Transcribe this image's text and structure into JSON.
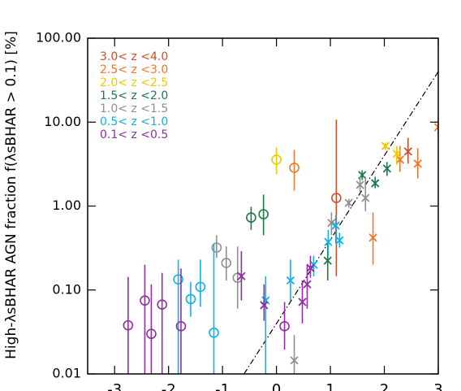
{
  "chart_data": {
    "type": "scatter",
    "y_label": "High-λsBHAR AGN fraction  f(λsBHAR > 0.1)  [%]",
    "log_y": true,
    "xlim": [
      -3.5,
      3
    ],
    "ylim": [
      0.01,
      100
    ],
    "xticks": [
      -3,
      -2,
      -1,
      0,
      1,
      2,
      3
    ],
    "yticks": [
      {
        "value": 100,
        "label": "100.00"
      },
      {
        "value": 10,
        "label": "10.00"
      },
      {
        "value": 1,
        "label": "1.00"
      },
      {
        "value": 0.1,
        "label": "0.10"
      },
      {
        "value": 0.01,
        "label": "0.01"
      }
    ],
    "fit_line": {
      "x": [
        -0.6,
        3
      ],
      "y": [
        0.01,
        40
      ],
      "color": "#000000"
    },
    "series": [
      {
        "name": "3.0< z <4.0",
        "color": "#c8502a",
        "x": [
          1.11,
          2.44
        ],
        "y": [
          1.25,
          4.47
        ],
        "ylow": [
          0.146,
          3.2
        ],
        "yhigh": [
          10.7,
          6.5
        ],
        "markers": [
          "o",
          "x"
        ]
      },
      {
        "name": "2.5< z <3.0",
        "color": "#f07828",
        "x": [
          0.33,
          1.79,
          2.29,
          2.62,
          3
        ],
        "y": [
          2.86,
          0.42,
          3.57,
          3.2,
          8.7
        ],
        "ylow": [
          1.53,
          0.2,
          2.56,
          2.14,
          6.5
        ],
        "yhigh": [
          4.67,
          0.84,
          5.2,
          4.9,
          11.4
        ],
        "markers": [
          "o",
          "x",
          "x",
          "x",
          "x"
        ]
      },
      {
        "name": "2.0< z <2.5",
        "color": "#f0c800",
        "x": [
          0,
          2.02,
          2.23
        ],
        "y": [
          3.57,
          5.2,
          4.2
        ],
        "ylow": [
          2.39,
          4.67,
          3.1
        ],
        "yhigh": [
          5.0,
          5.7,
          5.2
        ],
        "markers": [
          "o",
          "x",
          "x"
        ]
      },
      {
        "name": "1.5< z <2.0",
        "color": "#207848",
        "x": [
          -0.47,
          -0.24,
          0.95,
          1.59,
          1.83,
          2.05
        ],
        "y": [
          0.73,
          0.8,
          0.224,
          2.34,
          1.87,
          2.8
        ],
        "ylow": [
          0.52,
          0.45,
          0.13,
          2.04,
          1.63,
          2.29
        ],
        "yhigh": [
          0.98,
          1.37,
          0.37,
          2.67,
          2.24,
          3.34
        ],
        "markers": [
          "o",
          "o",
          "x",
          "x",
          "x",
          "x"
        ]
      },
      {
        "name": "1.0< z <1.5",
        "color": "#909090",
        "x": [
          -1.11,
          -0.93,
          -0.72,
          0.33,
          1.02,
          1.34,
          1.55,
          1.65
        ],
        "y": [
          0.32,
          0.21,
          0.14,
          0.0145,
          0.63,
          1.09,
          1.79,
          1.25
        ],
        "ylow": [
          0.24,
          0.13,
          0.06,
          0.01,
          0.45,
          0.96,
          1.43,
          0.87
        ],
        "yhigh": [
          0.45,
          0.33,
          0.33,
          0.029,
          0.84,
          1.22,
          2.24,
          2.24
        ],
        "markers": [
          "o",
          "o",
          "o",
          "x",
          "x",
          "x",
          "x",
          "x"
        ]
      },
      {
        "name": "0.5< z <1.0",
        "color": "#10b0e8",
        "x": [
          -1.82,
          -1.59,
          -1.41,
          -1.16,
          -0.2,
          0.26,
          0.69,
          0.96,
          1.1,
          1.17
        ],
        "y": [
          0.134,
          0.078,
          0.109,
          0.031,
          0.075,
          0.13,
          0.2,
          0.374,
          0.585,
          0.39
        ],
        "ylow": [
          0.01,
          0.048,
          0.063,
          0.01,
          0.01,
          0.075,
          0.146,
          0.256,
          0.36,
          0.32
        ],
        "yhigh": [
          0.23,
          0.125,
          0.23,
          0.357,
          0.146,
          0.23,
          0.256,
          0.52,
          0.78,
          0.48
        ],
        "markers": [
          "o",
          "o",
          "o",
          "o",
          "x",
          "x",
          "x",
          "x",
          "x",
          "x"
        ]
      },
      {
        "name": "0.1< z <0.5",
        "color": "#9030a0",
        "x": [
          -2.75,
          -2.44,
          -2.32,
          -2.12,
          -1.77,
          -0.65,
          -0.23,
          0.15,
          0.48,
          0.57,
          0.63
        ],
        "y": [
          0.038,
          0.075,
          0.03,
          0.067,
          0.037,
          0.146,
          0.066,
          0.037,
          0.072,
          0.117,
          0.183
        ],
        "ylow": [
          0.01,
          0.01,
          0.01,
          0.01,
          0.01,
          0.075,
          0.043,
          0.0195,
          0.04,
          0.06,
          0.14
        ],
        "yhigh": [
          0.143,
          0.2,
          0.117,
          0.16,
          0.18,
          0.29,
          0.117,
          0.072,
          0.13,
          0.2,
          0.256
        ],
        "markers": [
          "o",
          "o",
          "o",
          "o",
          "o",
          "x",
          "x",
          "o",
          "x",
          "x",
          "x"
        ]
      }
    ]
  }
}
